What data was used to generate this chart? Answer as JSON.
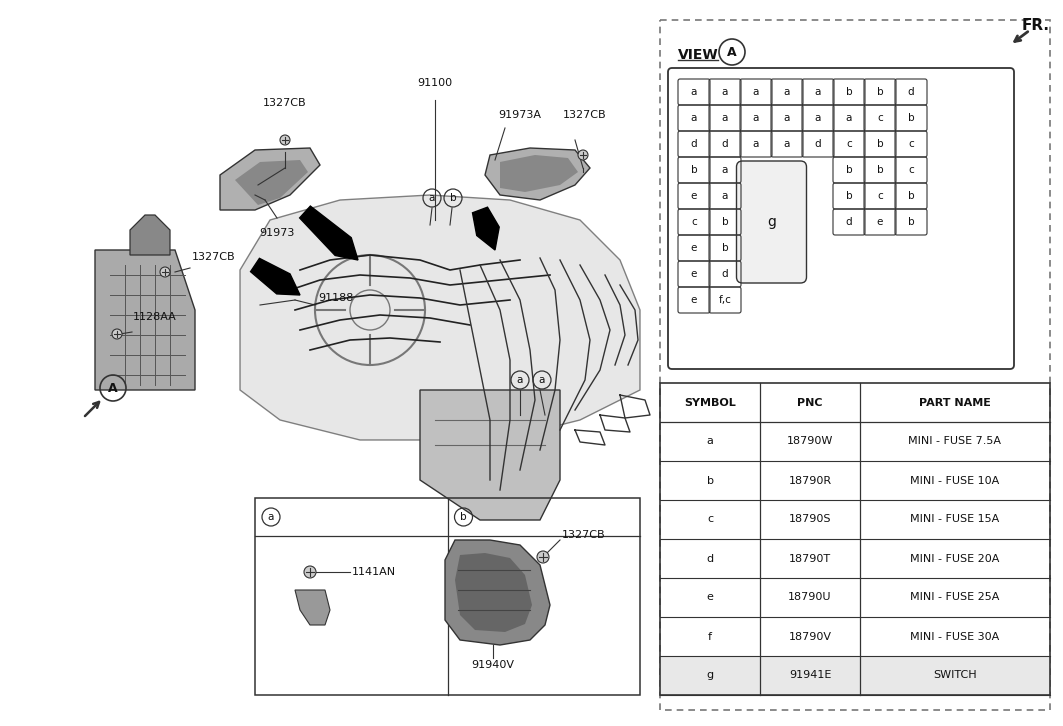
{
  "bg_color": "#ffffff",
  "text_color": "#111111",
  "line_color": "#333333",
  "dashed_color": "#777777",
  "table_rows": [
    [
      "a",
      "18790W",
      "MINI - FUSE 7.5A"
    ],
    [
      "b",
      "18790R",
      "MINI - FUSE 10A"
    ],
    [
      "c",
      "18790S",
      "MINI - FUSE 15A"
    ],
    [
      "d",
      "18790T",
      "MINI - FUSE 20A"
    ],
    [
      "e",
      "18790U",
      "MINI - FUSE 25A"
    ],
    [
      "f",
      "18790V",
      "MINI - FUSE 30A"
    ],
    [
      "g",
      "91941E",
      "SWITCH"
    ]
  ],
  "fuse_row1": [
    "a",
    "a",
    "a",
    "a",
    "a",
    "b",
    "b",
    "d"
  ],
  "fuse_row2": [
    "a",
    "a",
    "a",
    "a",
    "a",
    "a",
    "c",
    "b"
  ],
  "fuse_row3": [
    "d",
    "d",
    "a",
    "a",
    "d",
    "c",
    "b",
    "c"
  ],
  "fuse_row4_L": [
    "b",
    "a"
  ],
  "fuse_row4_R": [
    "b",
    "b",
    "c"
  ],
  "fuse_row5_L": [
    "e",
    "a"
  ],
  "fuse_row5_R": [
    "b",
    "c",
    "b"
  ],
  "fuse_row6_L": [
    "c",
    "b"
  ],
  "fuse_row6_R": [
    "d",
    "e",
    "b"
  ],
  "fuse_row7_L": [
    "e",
    "b"
  ],
  "fuse_row8_L": [
    "e",
    "d"
  ],
  "fuse_row9_L": [
    "e",
    "f,c"
  ]
}
